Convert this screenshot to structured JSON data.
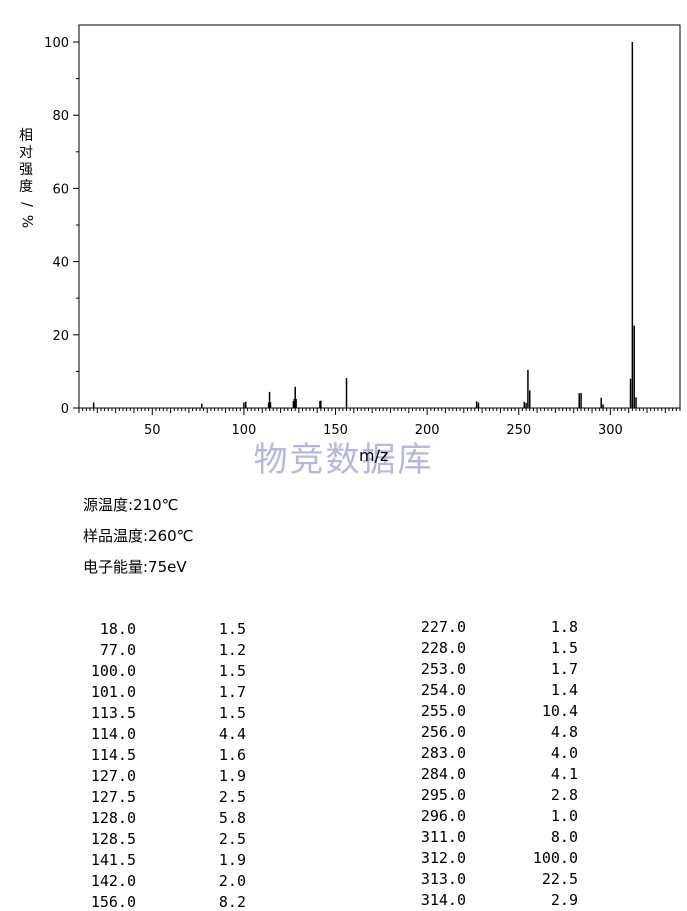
{
  "chart_data": {
    "type": "bar",
    "xlabel": "m/z",
    "ylabel": [
      "相",
      "对",
      "强",
      "度",
      "/",
      "%"
    ],
    "xlim": [
      10,
      338
    ],
    "ylim": [
      0,
      100
    ],
    "xticks": [
      50,
      100,
      150,
      200,
      250,
      300
    ],
    "yticks": [
      0,
      20,
      40,
      60,
      80,
      100
    ],
    "x": [
      18.0,
      77.0,
      100.0,
      101.0,
      113.5,
      114.0,
      114.5,
      127.0,
      127.5,
      128.0,
      128.5,
      141.5,
      142.0,
      156.0,
      227.0,
      228.0,
      253.0,
      254.0,
      255.0,
      256.0,
      283.0,
      284.0,
      295.0,
      296.0,
      311.0,
      312.0,
      313.0,
      314.0
    ],
    "values": [
      1.5,
      1.2,
      1.5,
      1.7,
      1.5,
      4.4,
      1.6,
      1.9,
      2.5,
      5.8,
      2.5,
      1.9,
      2.0,
      8.2,
      1.8,
      1.5,
      1.7,
      1.4,
      10.4,
      4.8,
      4.0,
      4.1,
      2.8,
      1.0,
      8.0,
      100.0,
      22.5,
      2.9
    ]
  },
  "watermark": "物竞数据库",
  "conditions": [
    "源温度:210℃",
    "样品温度:260℃",
    "电子能量:75eV"
  ],
  "table_left": [
    [
      "18.0",
      "1.5"
    ],
    [
      "77.0",
      "1.2"
    ],
    [
      "100.0",
      "1.5"
    ],
    [
      "101.0",
      "1.7"
    ],
    [
      "113.5",
      "1.5"
    ],
    [
      "114.0",
      "4.4"
    ],
    [
      "114.5",
      "1.6"
    ],
    [
      "127.0",
      "1.9"
    ],
    [
      "127.5",
      "2.5"
    ],
    [
      "128.0",
      "5.8"
    ],
    [
      "128.5",
      "2.5"
    ],
    [
      "141.5",
      "1.9"
    ],
    [
      "142.0",
      "2.0"
    ],
    [
      "156.0",
      "8.2"
    ]
  ],
  "table_right": [
    [
      "227.0",
      "1.8"
    ],
    [
      "228.0",
      "1.5"
    ],
    [
      "253.0",
      "1.7"
    ],
    [
      "254.0",
      "1.4"
    ],
    [
      "255.0",
      "10.4"
    ],
    [
      "256.0",
      "4.8"
    ],
    [
      "283.0",
      "4.0"
    ],
    [
      "284.0",
      "4.1"
    ],
    [
      "295.0",
      "2.8"
    ],
    [
      "296.0",
      "1.0"
    ],
    [
      "311.0",
      "8.0"
    ],
    [
      "312.0",
      "100.0"
    ],
    [
      "313.0",
      "22.5"
    ],
    [
      "314.0",
      "2.9"
    ]
  ]
}
